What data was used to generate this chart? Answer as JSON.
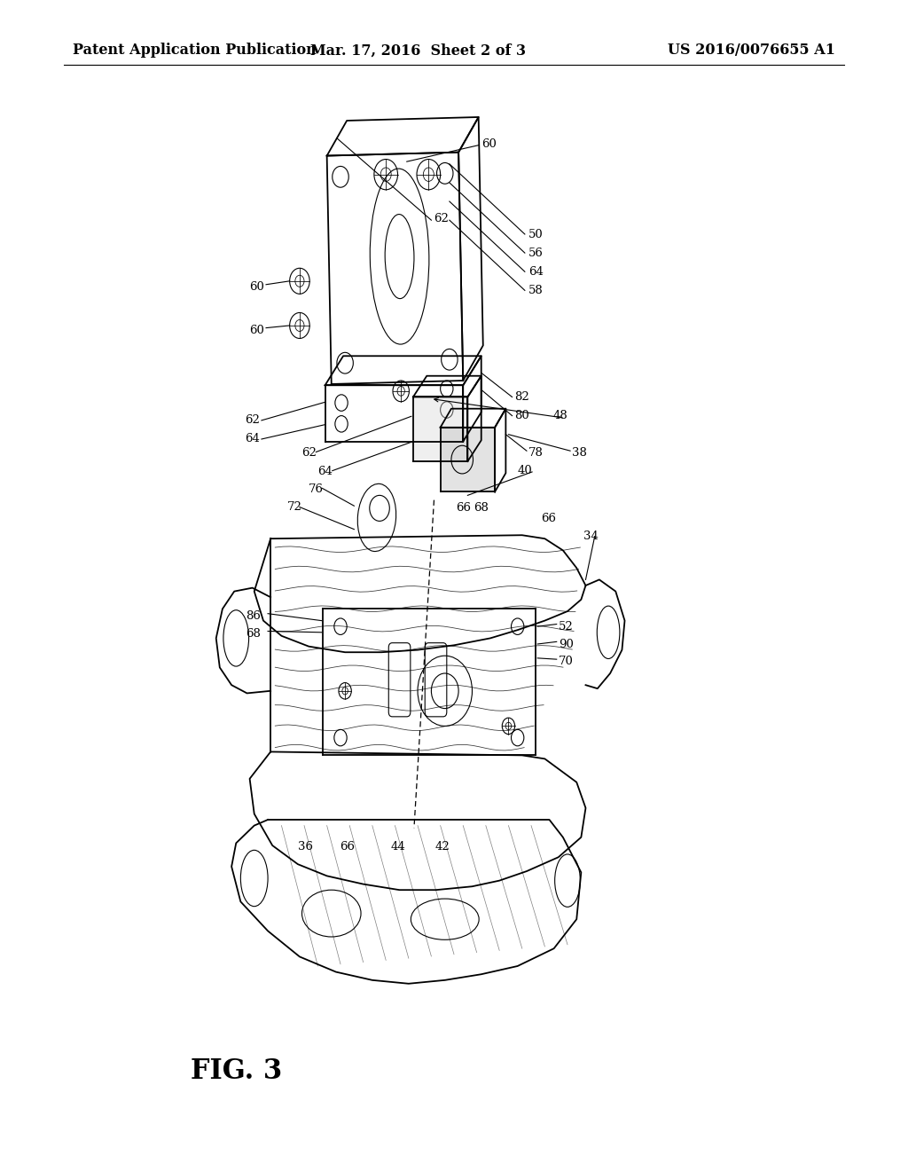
{
  "bg_color": "#ffffff",
  "header_left": "Patent Application Publication",
  "header_center": "Mar. 17, 2016  Sheet 2 of 3",
  "header_right": "US 2016/0076655 A1",
  "fig_label": "FIG. 3",
  "header_fontsize": 11.5,
  "fig_label_fontsize": 22,
  "label_fontsize": 9.5,
  "lw_main": 1.3,
  "lw_thin": 0.8,
  "black": "#000000"
}
